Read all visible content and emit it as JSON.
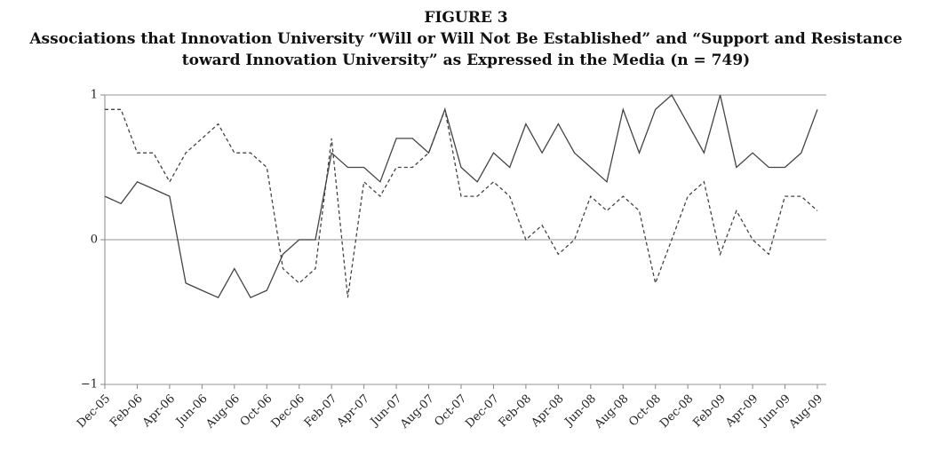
{
  "chart_data": {
    "type": "line",
    "title": "FIGURE 3",
    "subtitle": "Associations that Innovation University “Will or Will Not Be Established” and “Support and Resistance toward Innovation University” as Expressed in the Media (n = 749)",
    "categories": [
      "Dec-05",
      null,
      "Feb-06",
      null,
      "Apr-06",
      null,
      "Jun-06",
      null,
      "Aug-06",
      null,
      "Oct-06",
      null,
      "Dec-06",
      null,
      "Feb-07",
      null,
      "Apr-07",
      null,
      "Jun-07",
      null,
      "Aug-07",
      null,
      "Oct-07",
      null,
      "Dec-07",
      null,
      "Feb-08",
      null,
      "Apr-08",
      null,
      "Jun-08",
      null,
      "Aug-08",
      null,
      "Oct-08",
      null,
      "Dec-08",
      null,
      "Feb-09",
      null,
      "Apr-09",
      null,
      "Jun-09",
      null,
      "Aug-09"
    ],
    "series": [
      {
        "color": "#444444",
        "dashed": false,
        "values": [
          0.3,
          0.25,
          0.4,
          0.35,
          0.3,
          -0.3,
          -0.35,
          -0.4,
          -0.2,
          -0.4,
          -0.35,
          -0.1,
          0,
          0,
          0.6,
          0.5,
          0.5,
          0.4,
          0.7,
          0.7,
          0.6,
          0.9,
          0.5,
          0.4,
          0.6,
          0.5,
          0.8,
          0.6,
          0.8,
          0.6,
          0.5,
          0.4,
          0.9,
          0.6,
          0.9,
          1,
          0.8,
          0.6,
          1,
          0.5,
          0.6,
          0.5,
          0.5,
          0.6,
          0.9
        ]
      },
      {
        "color": "#444444",
        "dashed": true,
        "values": [
          0.9,
          0.9,
          0.6,
          0.6,
          0.4,
          0.6,
          0.7,
          0.8,
          0.6,
          0.6,
          0.5,
          -0.2,
          -0.3,
          -0.2,
          0.7,
          -0.4,
          0.4,
          0.3,
          0.5,
          0.5,
          0.6,
          0.9,
          0.3,
          0.3,
          0.4,
          0.3,
          0,
          0.1,
          -0.1,
          0,
          0.3,
          0.2,
          0.3,
          0.2,
          -0.3,
          0,
          0.3,
          0.4,
          -0.1,
          0.2,
          0,
          -0.1,
          0.3,
          0.3,
          0.2
        ]
      }
    ],
    "ylim": [
      -1,
      1
    ],
    "yticks": [
      {
        "value": -1,
        "label": "−1"
      },
      0,
      1
    ],
    "grid": true
  }
}
